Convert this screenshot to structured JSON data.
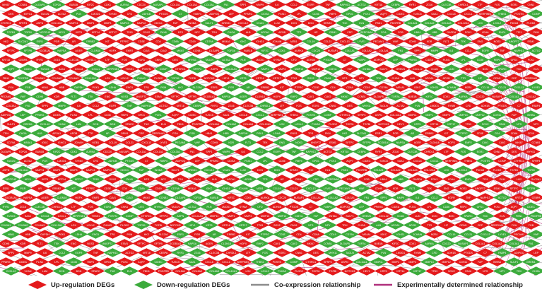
{
  "colors": {
    "up": "#e41a1c",
    "down": "#3cab3c",
    "coexpression": "#8c8c8c",
    "experimental": "#b0307c",
    "label": "#ffffff"
  },
  "legend": {
    "up_label": "Up-regulation DEGs",
    "down_label": "Down-regulation DEGs",
    "coexpression_label": "Co-expression relationship",
    "experimental_label": "Experimentally determined relationship"
  },
  "network": {
    "legible_node_labels": [
      "MKI67",
      "CCNB1",
      "DLGAP5",
      "TOP2A",
      "BUB1B",
      "KIF2C",
      "CDK1",
      "AURKA",
      "CDC20",
      "NUSAP1",
      "COL1A1",
      "COL1A2",
      "COL3A1",
      "FN1",
      "SPP1",
      "MMP9",
      "IL6",
      "CCL2",
      "EGFR",
      "TNF",
      "NAPH13",
      "ACTG2",
      "KRT18",
      "CEBPA",
      "RYR1",
      "ZG16",
      "CLEC3B",
      "CHRDL1",
      "LTF",
      "FOS",
      "EGR1",
      "CNN1",
      "DES",
      "MYH11",
      "TAGLN",
      "ACTA2",
      "PLN",
      "LMOD1",
      "SYNM",
      "CFD",
      "ADH1B",
      "PTGDS",
      "C7",
      "FABP4",
      "ADIPOQ",
      "LEP",
      "PPARG",
      "CIDEA",
      "PLIN1",
      "LPL",
      "CD36",
      "RBP4",
      "GPD1",
      "PCK1",
      "AQP7",
      "CIDEC",
      "TUSC5",
      "SAA1",
      "CXCL8",
      "CXCL1",
      "SERPINE1",
      "THBS1",
      "POSTN",
      "COMP",
      "CTHRC1",
      "SFRP4",
      "ASPN",
      "COL11A1",
      "MMP11",
      "MMP1",
      "MMP3",
      "MMP13",
      "MMP12",
      "CDH11",
      "FAP",
      "INHBA",
      "SULF1",
      "GREM1",
      "CXCL12",
      "VCAN",
      "LUM",
      "DCN",
      "BGN",
      "SPARC",
      "TNC",
      "ELN",
      "FBN1",
      "PDGFRB",
      "COL5A1",
      "COL5A2",
      "COL6A3",
      "COL12A1",
      "LOX",
      "LOXL2",
      "P4HA3",
      "PLOD2",
      "TGFB1",
      "TGFBI",
      "NOTCH3",
      "HEY1",
      "KRT5",
      "KRT14",
      "KRT17",
      "TP63",
      "SOX2",
      "PAX6",
      "NTS",
      "NPY",
      "TRH",
      "CHGA",
      "ALB",
      "APOA1",
      "APOB",
      "TTR",
      "HP",
      "ORM1",
      "CRP",
      "SERPINA1",
      "FGA",
      "FGB",
      "HBA1",
      "HBB",
      "GAPDH",
      "PGK1",
      "LDHA",
      "ENO1",
      "TPI1",
      "PKM",
      "HK2",
      "SLC2A1",
      "ESR1",
      "PGR",
      "AR",
      "ERBB2",
      "KIT",
      "PTPRC",
      "CD3E",
      "CD4",
      "CD8A",
      "CD19",
      "CD79A",
      "MS4A1",
      "IGKC",
      "IGHG1",
      "JCHAIN",
      "MZB1",
      "CCL19",
      "CCL21",
      "CXCL13",
      "LYVE1",
      "PECAM1",
      "VWF",
      "CDH5",
      "KDR",
      "FLT1",
      "TEK",
      "ENG",
      "NOS3",
      "ANGPT2",
      "ESM1",
      "SFTPC",
      "SFTPB",
      "SCGB1A1",
      "NAPSA",
      "AGER",
      "CLDN18",
      "HOPX",
      "EMP2",
      "CAV1",
      "CAV2"
    ]
  }
}
